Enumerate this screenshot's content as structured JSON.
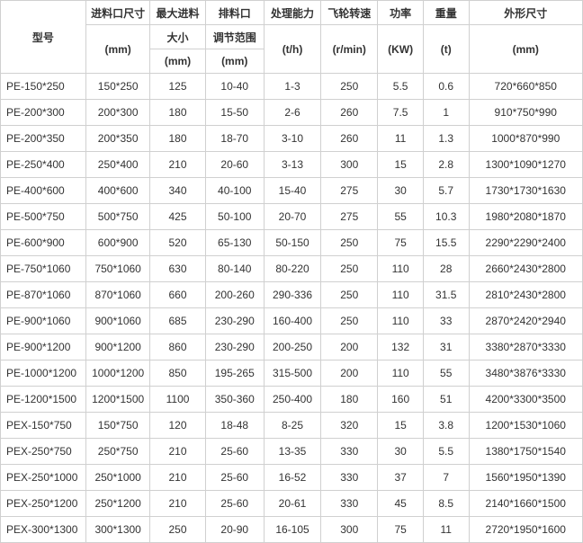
{
  "table": {
    "columns": [
      {
        "h1": "型号",
        "h2": "",
        "h3": ""
      },
      {
        "h1": "进料口尺寸",
        "h2": "(mm)",
        "h3": ""
      },
      {
        "h1": "最大进料",
        "h2": "大小",
        "h3": "(mm)"
      },
      {
        "h1": "排料口",
        "h2": "调节范围",
        "h3": "(mm)"
      },
      {
        "h1": "处理能力",
        "h2": "(t/h)",
        "h3": ""
      },
      {
        "h1": "飞轮转速",
        "h2": "(r/min)",
        "h3": ""
      },
      {
        "h1": "功率",
        "h2": "(KW)",
        "h3": ""
      },
      {
        "h1": "重量",
        "h2": "(t)",
        "h3": ""
      },
      {
        "h1": "外形尺寸",
        "h2": "(mm)",
        "h3": ""
      }
    ],
    "rows": [
      [
        "PE-150*250",
        "150*250",
        "125",
        "10-40",
        "1-3",
        "250",
        "5.5",
        "0.6",
        "720*660*850"
      ],
      [
        "PE-200*300",
        "200*300",
        "180",
        "15-50",
        "2-6",
        "260",
        "7.5",
        "1",
        "910*750*990"
      ],
      [
        "PE-200*350",
        "200*350",
        "180",
        "18-70",
        "3-10",
        "260",
        "11",
        "1.3",
        "1000*870*990"
      ],
      [
        "PE-250*400",
        "250*400",
        "210",
        "20-60",
        "3-13",
        "300",
        "15",
        "2.8",
        "1300*1090*1270"
      ],
      [
        "PE-400*600",
        "400*600",
        "340",
        "40-100",
        "15-40",
        "275",
        "30",
        "5.7",
        "1730*1730*1630"
      ],
      [
        "PE-500*750",
        "500*750",
        "425",
        "50-100",
        "20-70",
        "275",
        "55",
        "10.3",
        "1980*2080*1870"
      ],
      [
        "PE-600*900",
        "600*900",
        "520",
        "65-130",
        "50-150",
        "250",
        "75",
        "15.5",
        "2290*2290*2400"
      ],
      [
        "PE-750*1060",
        "750*1060",
        "630",
        "80-140",
        "80-220",
        "250",
        "110",
        "28",
        "2660*2430*2800"
      ],
      [
        "PE-870*1060",
        "870*1060",
        "660",
        "200-260",
        "290-336",
        "250",
        "110",
        "31.5",
        "2810*2430*2800"
      ],
      [
        "PE-900*1060",
        "900*1060",
        "685",
        "230-290",
        "160-400",
        "250",
        "110",
        "33",
        "2870*2420*2940"
      ],
      [
        "PE-900*1200",
        "900*1200",
        "860",
        "230-290",
        "200-250",
        "200",
        "132",
        "31",
        "3380*2870*3330"
      ],
      [
        "PE-1000*1200",
        "1000*1200",
        "850",
        "195-265",
        "315-500",
        "200",
        "110",
        "55",
        "3480*3876*3330"
      ],
      [
        "PE-1200*1500",
        "1200*1500",
        "1100",
        "350-360",
        "250-400",
        "180",
        "160",
        "51",
        "4200*3300*3500"
      ],
      [
        "PEX-150*750",
        "150*750",
        "120",
        "18-48",
        "8-25",
        "320",
        "15",
        "3.8",
        "1200*1530*1060"
      ],
      [
        "PEX-250*750",
        "250*750",
        "210",
        "25-60",
        "13-35",
        "330",
        "30",
        "5.5",
        "1380*1750*1540"
      ],
      [
        "PEX-250*1000",
        "250*1000",
        "210",
        "25-60",
        "16-52",
        "330",
        "37",
        "7",
        "1560*1950*1390"
      ],
      [
        "PEX-250*1200",
        "250*1200",
        "210",
        "25-60",
        "20-61",
        "330",
        "45",
        "8.5",
        "2140*1660*1500"
      ],
      [
        "PEX-300*1300",
        "300*1300",
        "250",
        "20-90",
        "16-105",
        "300",
        "75",
        "11",
        "2720*1950*1600"
      ]
    ],
    "border_color": "#d0d0d0",
    "text_color": "#333333",
    "bg_color": "#ffffff",
    "font_size": 12
  }
}
